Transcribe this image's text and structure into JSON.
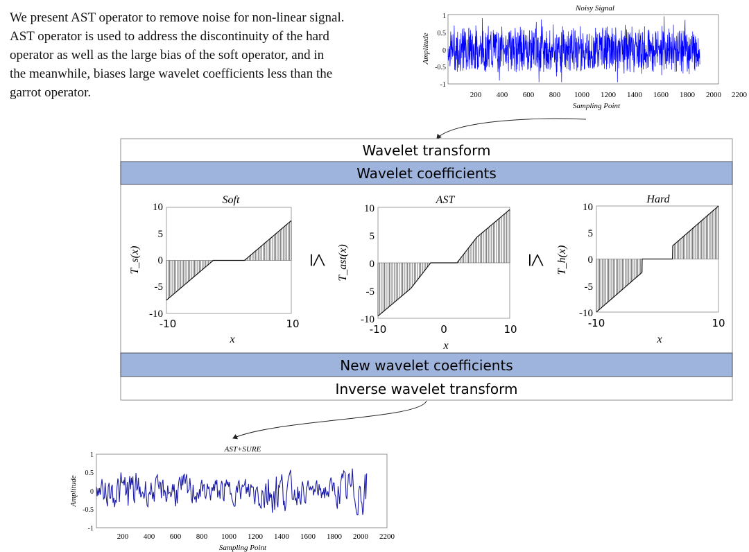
{
  "intro": {
    "lines": [
      "We present AST operator to remove noise for non-linear signal.",
      "AST operator is used to address the discontinuity of the hard",
      "operator as well as the large bias of the soft operator, and in",
      "the meanwhile, biases large wavelet coefficients less than the",
      "garrot operator."
    ]
  },
  "flow": {
    "wavelet_transform": "Wavelet transform",
    "wavelet_coefficients": "Wavelet coefficients",
    "new_wavelet_coefficients": "New wavelet coefficients",
    "inverse_wavelet_transform": "Inverse wavelet transform",
    "band_color": "#9fb4dd",
    "relation_symbol": "≤"
  },
  "noisy_plot": {
    "title": "Noisy Signal",
    "xlabel": "Sampling Point",
    "ylabel": "Amplitude",
    "xticks": [
      "200",
      "400",
      "600",
      "800",
      "1000",
      "1200",
      "1400",
      "1600",
      "1800",
      "2000",
      "2200"
    ],
    "yticks": [
      "1",
      "0.5",
      "0",
      "-0.5",
      "-1"
    ],
    "line_color": "#0000ff"
  },
  "denoised_plot": {
    "title": "AST+SURE",
    "xlabel": "Sampling Point",
    "ylabel": "Amplitude",
    "xticks": [
      "200",
      "400",
      "600",
      "800",
      "1000",
      "1200",
      "1400",
      "1600",
      "1800",
      "2000",
      "2200"
    ],
    "yticks": [
      "1",
      "0.5",
      "0",
      "-0.5",
      "-1"
    ],
    "line_color": "#1a1aa6"
  },
  "chart_data": [
    {
      "type": "line",
      "title": "Noisy Signal",
      "xlabel": "Sampling Point",
      "ylabel": "Amplitude",
      "xlim": [
        0,
        2200
      ],
      "ylim": [
        -1,
        1
      ],
      "series": [
        {
          "x_range": [
            0,
            2048
          ],
          "amplitude_range": [
            -0.95,
            0.95
          ]
        }
      ]
    },
    {
      "type": "line",
      "title": "Soft",
      "xlabel": "x",
      "ylabel": "T_s(x)",
      "xlim": [
        -10,
        10
      ],
      "ylim": [
        -10,
        10
      ],
      "xticks": [
        "-10",
        "10"
      ],
      "yticks": [
        "10",
        "5",
        "0",
        "-5",
        "-10"
      ],
      "threshold": 2.5,
      "series": [
        {
          "x": [
            -10,
            -2.5,
            2.5,
            10
          ],
          "y": [
            -7.5,
            0,
            0,
            7.5
          ]
        }
      ]
    },
    {
      "type": "line",
      "title": "AST",
      "xlabel": "x",
      "ylabel": "T_ast(x)",
      "xlim": [
        -10,
        10
      ],
      "ylim": [
        -10,
        10
      ],
      "xticks": [
        "-10",
        "0",
        "10"
      ],
      "yticks": [
        "10",
        "5",
        "0",
        "-5",
        "-10"
      ],
      "threshold": 2,
      "series": [
        {
          "x": [
            -10,
            -5,
            -2,
            2,
            5,
            10
          ],
          "y": [
            -9.6,
            -4.6,
            0,
            0,
            4.6,
            9.6
          ]
        }
      ]
    },
    {
      "type": "line",
      "title": "Hard",
      "xlabel": "x",
      "ylabel": "T_h(x)",
      "xlim": [
        -10,
        10
      ],
      "ylim": [
        -10,
        10
      ],
      "xticks": [
        "-10",
        "10"
      ],
      "yticks": [
        "10",
        "5",
        "0",
        "-5",
        "-10"
      ],
      "threshold": 2.5,
      "series": [
        {
          "x": [
            -10,
            -2.5,
            -2.5,
            2.5,
            2.5,
            10
          ],
          "y": [
            -10,
            -2.5,
            0,
            0,
            2.5,
            10
          ]
        }
      ]
    },
    {
      "type": "line",
      "title": "AST+SURE",
      "xlabel": "Sampling Point",
      "ylabel": "Amplitude",
      "xlim": [
        0,
        2200
      ],
      "ylim": [
        -1,
        1
      ],
      "series": [
        {
          "x_range": [
            0,
            2048
          ],
          "amplitude_range": [
            -0.65,
            0.65
          ]
        }
      ]
    }
  ]
}
